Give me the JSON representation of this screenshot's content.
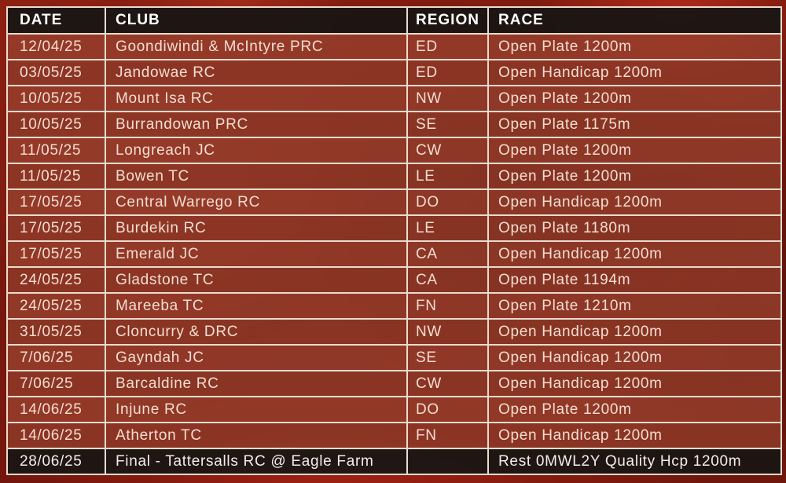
{
  "theme": {
    "row_red": "#97402d",
    "row_red_alt": "#8e3a28",
    "header_black": "#1b1614",
    "border_cream": "#e9dbcf",
    "row_text_cream": "#f4ded2",
    "header_text": "#ffffff",
    "background_dark_red": "#7a190e"
  },
  "table": {
    "columns": [
      {
        "key": "date",
        "label": "DATE"
      },
      {
        "key": "club",
        "label": "CLUB"
      },
      {
        "key": "region",
        "label": "REGION"
      },
      {
        "key": "race",
        "label": "RACE"
      }
    ],
    "rows": [
      {
        "date": "12/04/25",
        "club": "Goondiwindi & McIntyre PRC",
        "region": "ED",
        "race": "Open Plate 1200m",
        "final": false
      },
      {
        "date": "03/05/25",
        "club": "Jandowae RC",
        "region": "ED",
        "race": "Open Handicap 1200m",
        "final": false
      },
      {
        "date": "10/05/25",
        "club": "Mount Isa RC",
        "region": "NW",
        "race": "Open Plate 1200m",
        "final": false
      },
      {
        "date": "10/05/25",
        "club": "Burrandowan PRC",
        "region": "SE",
        "race": "Open Plate 1175m",
        "final": false
      },
      {
        "date": "11/05/25",
        "club": "Longreach JC",
        "region": "CW",
        "race": "Open Plate 1200m",
        "final": false
      },
      {
        "date": "11/05/25",
        "club": "Bowen TC",
        "region": "LE",
        "race": "Open Plate 1200m",
        "final": false
      },
      {
        "date": "17/05/25",
        "club": "Central Warrego RC",
        "region": "DO",
        "race": "Open Handicap 1200m",
        "final": false
      },
      {
        "date": "17/05/25",
        "club": "Burdekin RC",
        "region": "LE",
        "race": "Open Plate 1180m",
        "final": false
      },
      {
        "date": "17/05/25",
        "club": "Emerald JC",
        "region": "CA",
        "race": "Open Handicap 1200m",
        "final": false
      },
      {
        "date": "24/05/25",
        "club": "Gladstone TC",
        "region": "CA",
        "race": "Open Plate 1194m",
        "final": false
      },
      {
        "date": "24/05/25",
        "club": "Mareeba TC",
        "region": "FN",
        "race": "Open Plate 1210m",
        "final": false
      },
      {
        "date": "31/05/25",
        "club": "Cloncurry & DRC",
        "region": "NW",
        "race": "Open Handicap 1200m",
        "final": false
      },
      {
        "date": "7/06/25",
        "club": "Gayndah JC",
        "region": "SE",
        "race": "Open Handicap 1200m",
        "final": false
      },
      {
        "date": "7/06/25",
        "club": "Barcaldine RC",
        "region": "CW",
        "race": "Open Handicap 1200m",
        "final": false
      },
      {
        "date": "14/06/25",
        "club": "Injune RC",
        "region": "DO",
        "race": "Open Plate 1200m",
        "final": false
      },
      {
        "date": "14/06/25",
        "club": "Atherton TC",
        "region": "FN",
        "race": "Open Handicap 1200m",
        "final": false
      },
      {
        "date": "28/06/25",
        "club": "Final - Tattersalls RC @ Eagle Farm",
        "region": "",
        "race": "Rest 0MWL2Y Quality Hcp 1200m",
        "final": true
      }
    ]
  }
}
